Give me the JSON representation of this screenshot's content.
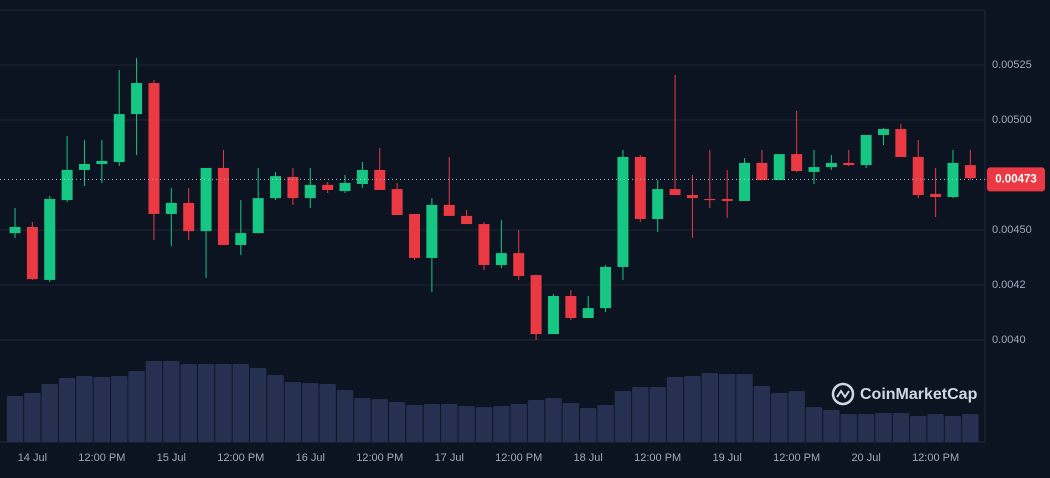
{
  "chart_data": {
    "type": "candlestick",
    "categories": [
      null,
      "14 Jul",
      null,
      null,
      null,
      "12:00 PM",
      null,
      null,
      null,
      "15 Jul",
      null,
      null,
      null,
      "12:00 PM",
      null,
      null,
      null,
      "16 Jul",
      null,
      null,
      null,
      "12:00 PM",
      null,
      null,
      null,
      "17 Jul",
      null,
      null,
      null,
      "12:00 PM",
      null,
      null,
      null,
      "18 Jul",
      null,
      null,
      null,
      "12:00 PM",
      null,
      null,
      null,
      "19 Jul",
      null,
      null,
      null,
      "12:00 PM",
      null,
      null,
      null,
      "20 Jul",
      null,
      null,
      null,
      "12:00 PM",
      null,
      null
    ],
    "open": [
      0.004486,
      0.004514,
      0.004273,
      0.004636,
      0.004773,
      0.0048,
      0.004809,
      0.005027,
      0.005168,
      0.004573,
      0.004623,
      0.004495,
      0.004782,
      0.004432,
      0.004486,
      0.004645,
      0.004741,
      0.004645,
      0.004705,
      0.004677,
      0.004709,
      0.004773,
      0.004686,
      0.004573,
      0.004373,
      0.004614,
      0.004564,
      0.004527,
      0.004341,
      0.004395,
      0.004295,
      0.004027,
      0.0042,
      0.0041,
      0.004145,
      0.004332,
      0.004832,
      0.00455,
      0.004686,
      0.004659,
      0.004641,
      0.004641,
      0.004632,
      0.004805,
      0.004727,
      0.004845,
      0.004764,
      0.004786,
      0.004805,
      0.004795,
      0.004932,
      0.004959,
      0.004832,
      0.004664,
      0.00465,
      0.004795
    ],
    "close": [
      0.004514,
      0.004277,
      0.004641,
      0.004773,
      0.0048,
      0.004814,
      0.005027,
      0.005168,
      0.004573,
      0.004623,
      0.004495,
      0.004782,
      0.004432,
      0.004486,
      0.004645,
      0.004745,
      0.004645,
      0.004705,
      0.004682,
      0.004714,
      0.004773,
      0.004682,
      0.004568,
      0.004373,
      0.004614,
      0.004564,
      0.004527,
      0.004341,
      0.004395,
      0.004291,
      0.004027,
      0.0042,
      0.0041,
      0.004145,
      0.004332,
      0.004832,
      0.00455,
      0.004686,
      0.004659,
      0.004645,
      0.004636,
      0.004632,
      0.004805,
      0.004727,
      0.004845,
      0.004768,
      0.004786,
      0.004805,
      0.004795,
      0.004932,
      0.004959,
      0.004832,
      0.004659,
      0.00465,
      0.004805,
      0.004736
    ],
    "high": [
      0.0046,
      0.004536,
      0.004655,
      0.004927,
      0.004909,
      0.004909,
      0.005227,
      0.005282,
      0.005182,
      0.004691,
      0.004691,
      0.004782,
      0.004864,
      0.004636,
      0.004782,
      0.004764,
      0.004782,
      0.004782,
      0.004718,
      0.00475,
      0.004809,
      0.004873,
      0.004714,
      0.004573,
      0.004645,
      0.004832,
      0.004591,
      0.004536,
      0.004545,
      0.0045,
      0.004295,
      0.004209,
      0.004227,
      0.0042,
      0.004341,
      0.004864,
      0.004841,
      0.004727,
      0.005205,
      0.00475,
      0.004864,
      0.004773,
      0.004827,
      0.004864,
      0.004845,
      0.005041,
      0.004864,
      0.004841,
      0.004864,
      0.004932,
      0.004964,
      0.004982,
      0.004909,
      0.004782,
      0.004864,
      0.004864
    ],
    "low": [
      0.004464,
      0.004273,
      0.004264,
      0.004627,
      0.0047,
      0.004714,
      0.004791,
      0.004841,
      0.004455,
      0.004427,
      0.004455,
      0.004282,
      0.004432,
      0.004386,
      0.004486,
      0.004636,
      0.004614,
      0.0046,
      0.004668,
      0.004668,
      0.004691,
      0.004682,
      0.004568,
      0.004364,
      0.004218,
      0.004564,
      0.004527,
      0.004318,
      0.004327,
      0.004273,
      0.004,
      0.004027,
      0.004091,
      0.0041,
      0.004127,
      0.004273,
      0.004536,
      0.004491,
      0.004659,
      0.004464,
      0.0046,
      0.004555,
      0.004632,
      0.004727,
      0.004727,
      0.004764,
      0.004709,
      0.004773,
      0.004791,
      0.004782,
      0.004886,
      0.004832,
      0.004645,
      0.004559,
      0.004645,
      0.004727
    ],
    "volume": [
      46,
      49,
      58,
      64,
      66,
      65,
      66,
      71,
      81,
      81,
      78,
      78,
      78,
      78,
      74,
      67,
      60,
      59,
      58,
      52,
      44,
      43,
      40,
      37,
      38,
      38,
      36,
      35,
      36,
      38,
      42,
      44,
      39,
      34,
      37,
      51,
      55,
      55,
      65,
      66,
      69,
      68,
      68,
      56,
      49,
      51,
      35,
      32,
      28,
      28,
      29,
      29,
      26,
      28,
      26,
      28
    ],
    "volume_lim": [
      0,
      100
    ],
    "ylim": [
      0.0036,
      0.0055
    ],
    "yticks": [
      {
        "value": 0.004,
        "label": "0.0040"
      },
      {
        "value": 0.00425,
        "label": "0.0042"
      },
      {
        "value": 0.0045,
        "label": "0.00450"
      },
      {
        "value": 0.005,
        "label": "0.00500"
      },
      0.00525
    ],
    "current_price": 0.00473,
    "grid": true,
    "up_color": "#16c784",
    "down_color": "#ea3943",
    "volume_color": "#263152",
    "watermark": "CoinMarketCap"
  }
}
